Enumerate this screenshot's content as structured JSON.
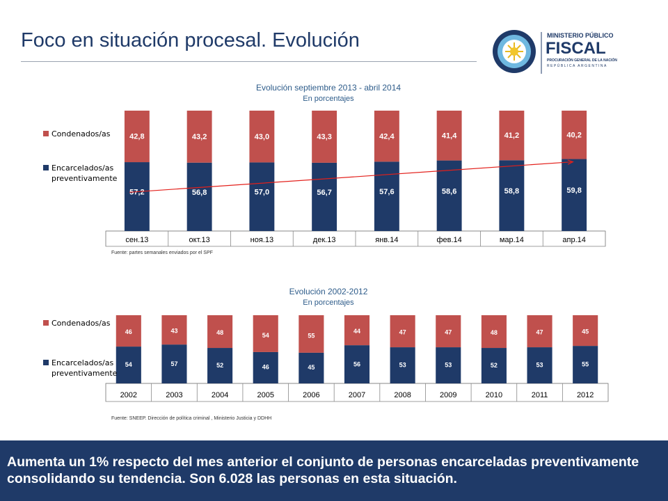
{
  "page": {
    "title": "Foco en situación procesal. Evolución",
    "footer": "Aumenta un 1% respecto del mes anterior el conjunto de personas encarceladas preventivamente consolidando su tendencia. Son 6.028 las personas en esta situación."
  },
  "logo": {
    "line1": "MINISTERIO PÚBLICO",
    "line2": "FISCAL",
    "line3": "PROCURACIÓN GENERAL DE LA NACIÓN",
    "line4": "REPÚBLICA ARGENTINA"
  },
  "colors": {
    "encarcelados": "#1f3a68",
    "condenados": "#c0504d",
    "trend": "#e3201b",
    "footer_bg": "#1f3a68"
  },
  "chart_data": [
    {
      "type": "bar",
      "stacked": true,
      "percent": true,
      "title": "Evolución septiembre 2013 - abril 2014",
      "subtitle": "En porcentajes",
      "categories": [
        "сен.13",
        "окт.13",
        "ноя.13",
        "дек.13",
        "янв.14",
        "фев.14",
        "мар.14",
        "апр.14"
      ],
      "series": [
        {
          "name": "Encarcelados/as preventivamente",
          "values": [
            "57,2",
            "56,8",
            "57,0",
            "56,7",
            "57,6",
            "58,6",
            "58,8",
            "59,8"
          ]
        },
        {
          "name": "Condenados/as",
          "values": [
            "42,8",
            "43,2",
            "43,0",
            "43,3",
            "42,4",
            "41,4",
            "41,2",
            "40,2"
          ]
        }
      ],
      "legend": [
        "Condenados/as",
        "Encarcelados/as preventivamente"
      ],
      "legend_position": "left",
      "trend_arrow": {
        "from": "сен.13",
        "to": "апр.14"
      },
      "source": "Fuente: partes semanales enviados por el SPF",
      "ylim": [
        0,
        100
      ]
    },
    {
      "type": "bar",
      "stacked": true,
      "percent": true,
      "title": "Evolución 2002-2012",
      "subtitle": "En porcentajes",
      "categories": [
        "2002",
        "2003",
        "2004",
        "2005",
        "2006",
        "2007",
        "2008",
        "2009",
        "2010",
        "2011",
        "2012"
      ],
      "series": [
        {
          "name": "Encarcelados/as preventivamente",
          "values": [
            "54",
            "57",
            "52",
            "46",
            "45",
            "56",
            "53",
            "53",
            "52",
            "53",
            "55"
          ]
        },
        {
          "name": "Condenados/as",
          "values": [
            "46",
            "43",
            "48",
            "54",
            "55",
            "44",
            "47",
            "47",
            "48",
            "47",
            "45"
          ]
        }
      ],
      "legend": [
        "Condenados/as",
        "Encarcelados/as preventivamente"
      ],
      "legend_position": "left",
      "source": "Fuente: SNEEP. Dirección de política criminal , Ministerio Justicia y DDHH",
      "ylim": [
        0,
        100
      ]
    }
  ]
}
